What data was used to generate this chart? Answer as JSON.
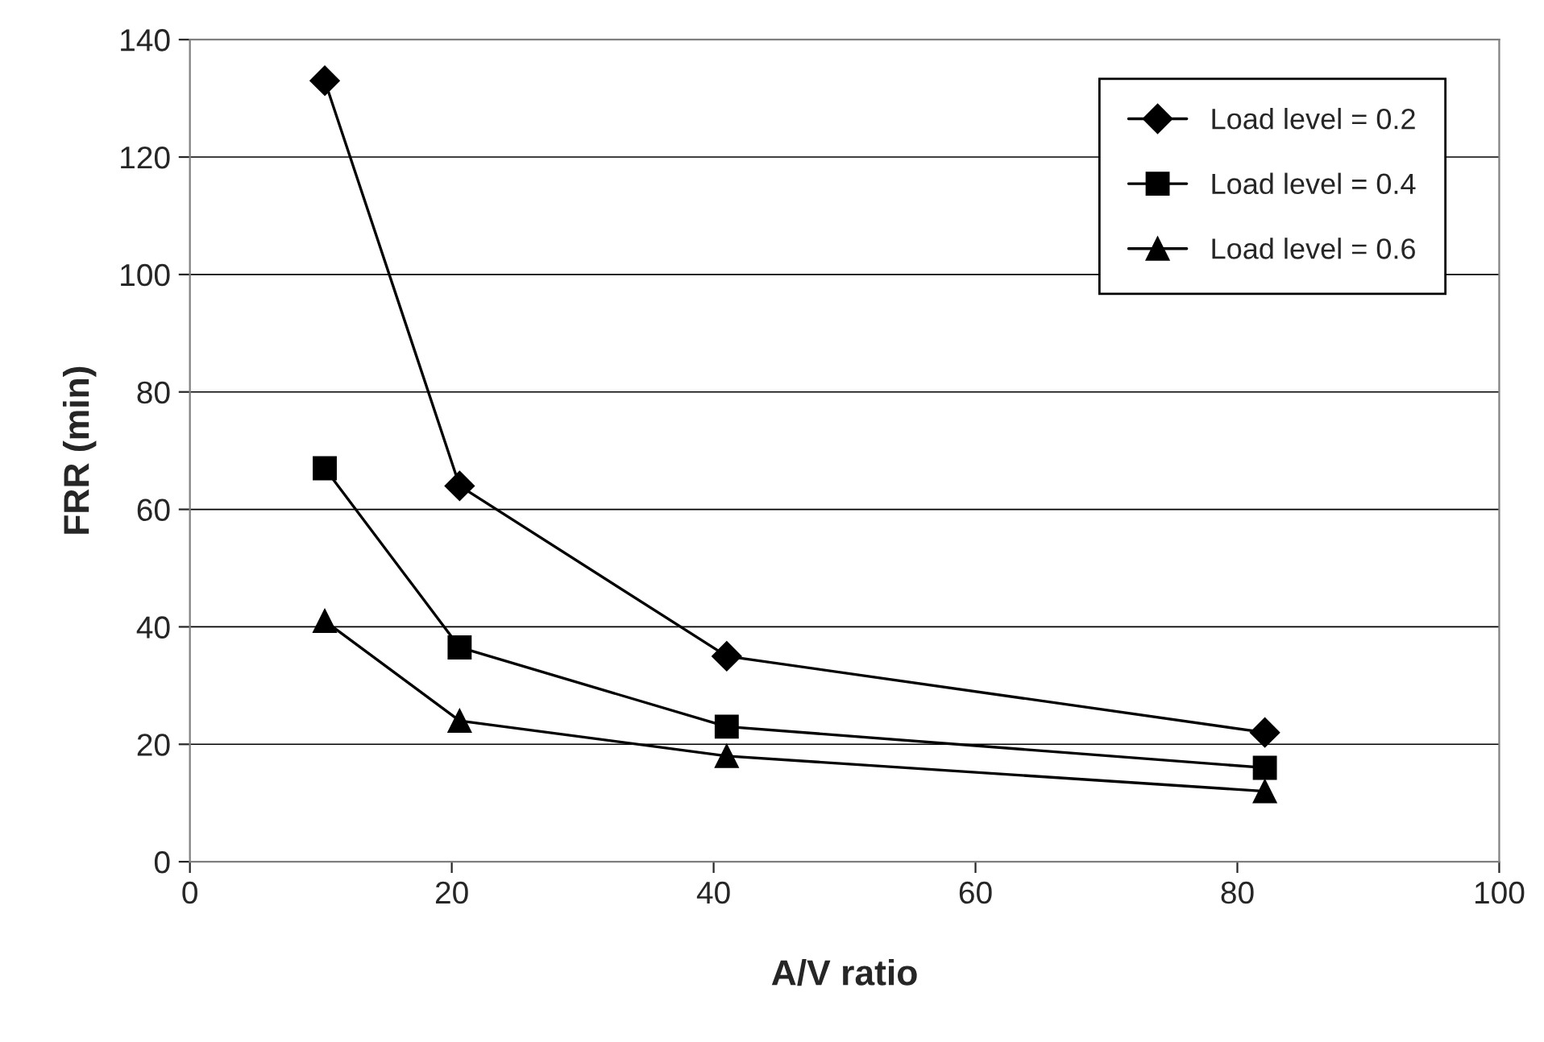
{
  "chart_data": {
    "type": "line",
    "xlabel": "A/V ratio",
    "ylabel": "FRR (min)",
    "x": [
      10.3,
      20.6,
      41,
      82.1
    ],
    "series": [
      {
        "name": "Load level = 0.2",
        "color": "#000000",
        "marker": "diamond",
        "values": [
          133,
          64,
          35,
          22
        ]
      },
      {
        "name": "Load level = 0.4",
        "color": "#000000",
        "marker": "square",
        "values": [
          67,
          36.5,
          23,
          16
        ]
      },
      {
        "name": "Load level = 0.6",
        "color": "#000000",
        "marker": "triangle",
        "values": [
          41,
          24,
          18,
          12
        ]
      }
    ],
    "xlim": [
      0,
      100
    ],
    "xticks": [
      0,
      20,
      40,
      60,
      80,
      100
    ],
    "ylim": [
      0,
      140
    ],
    "yticks": [
      0,
      20,
      40,
      60,
      80,
      100,
      120,
      140
    ],
    "grid": "y",
    "legend": "top right",
    "line_style": "solid"
  }
}
